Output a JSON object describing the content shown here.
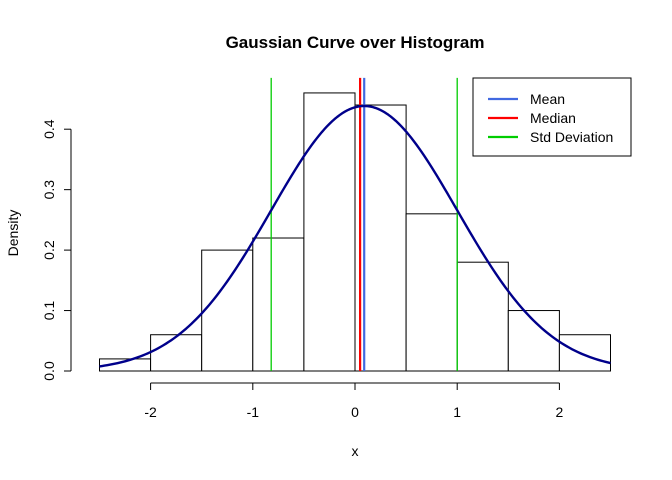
{
  "chart_data": {
    "type": "bar",
    "title": "Gaussian Curve over Histogram",
    "xlabel": "x",
    "ylabel": "Density",
    "xlim": [
      -2.5,
      2.5
    ],
    "ylim": [
      0,
      0.46
    ],
    "x_ticks": [
      -2,
      -1,
      0,
      1,
      2
    ],
    "x_tick_labels": [
      "-2",
      "-1",
      "0",
      "1",
      "2"
    ],
    "y_ticks": [
      0.0,
      0.1,
      0.2,
      0.3,
      0.4
    ],
    "y_tick_labels": [
      "0.0",
      "0.1",
      "0.2",
      "0.3",
      "0.4"
    ],
    "grid": false,
    "legend_position": "top-right",
    "histogram": {
      "bin_edges": [
        -2.5,
        -2.0,
        -1.5,
        -1.0,
        -0.5,
        0.0,
        0.5,
        1.0,
        1.5,
        2.0,
        2.5
      ],
      "density": [
        0.02,
        0.06,
        0.2,
        0.22,
        0.46,
        0.44,
        0.26,
        0.18,
        0.1,
        0.06
      ],
      "fill": "#ffffff",
      "stroke": "#000000"
    },
    "gaussian_curve": {
      "mean": 0.09,
      "sd": 0.91,
      "color": "#00008b"
    },
    "vertical_lines": [
      {
        "name": "Mean",
        "x": 0.09,
        "color": "#4169e1"
      },
      {
        "name": "Median",
        "x": 0.05,
        "color": "#ff0000"
      },
      {
        "name": "Std Deviation",
        "x": -0.82,
        "color": "#00cd00"
      },
      {
        "name": "Std Deviation",
        "x": 1.0,
        "color": "#00cd00"
      }
    ],
    "legend": [
      {
        "label": "Mean",
        "color": "#4169e1"
      },
      {
        "label": "Median",
        "color": "#ff0000"
      },
      {
        "label": "Std Deviation",
        "color": "#00cd00"
      }
    ]
  }
}
